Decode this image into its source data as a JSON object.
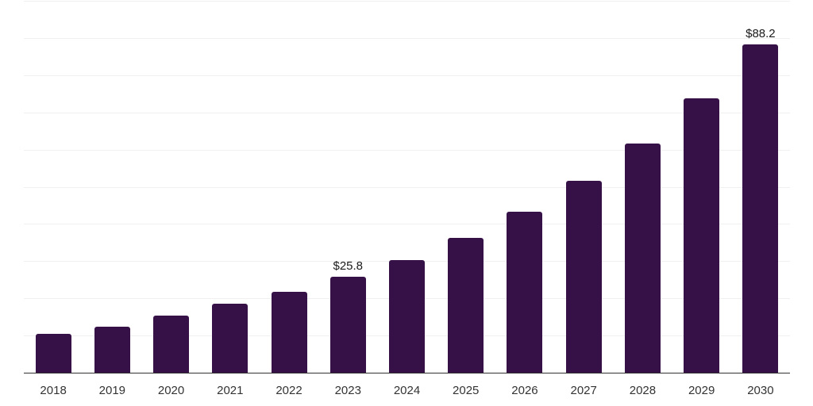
{
  "chart_data": {
    "type": "bar",
    "title": "",
    "xlabel": "",
    "ylabel": "",
    "categories": [
      "2018",
      "2019",
      "2020",
      "2021",
      "2022",
      "2023",
      "2024",
      "2025",
      "2026",
      "2027",
      "2028",
      "2029",
      "2030"
    ],
    "values": [
      10.5,
      12.3,
      15.4,
      18.5,
      21.7,
      25.8,
      30.3,
      36.2,
      43.2,
      51.5,
      61.7,
      73.8,
      88.2
    ],
    "data_labels": [
      "",
      "",
      "",
      "",
      "",
      "$25.8",
      "",
      "",
      "",
      "",
      "",
      "",
      "$88.2"
    ],
    "ylim": [
      0,
      100
    ],
    "gridline_step": 10,
    "grid": true,
    "legend": false,
    "y_axis_labels_visible": false,
    "colors": {
      "bar": "#361148",
      "gridline": "#f0f0f0",
      "axis": "#333333",
      "tick_label": "#333333",
      "value_label": "#1a1a1a",
      "background": "#ffffff"
    }
  }
}
